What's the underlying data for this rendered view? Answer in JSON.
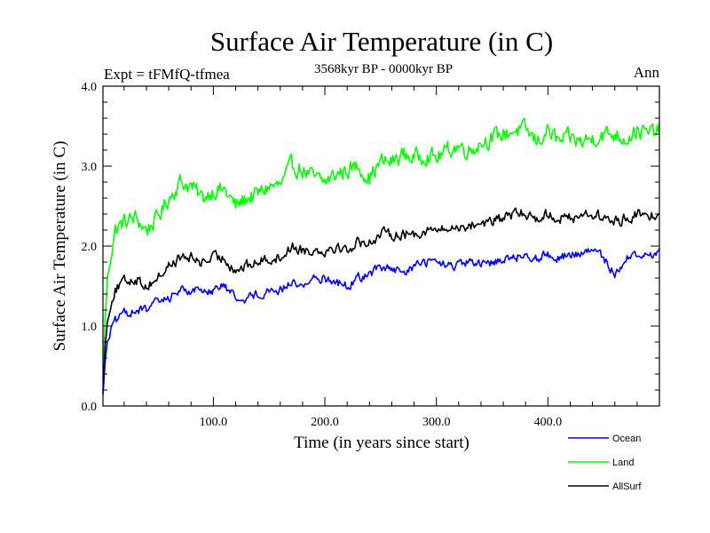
{
  "chart_data": {
    "type": "line",
    "title": "Surface Air Temperature (in C)",
    "subtitle_left": "Expt = tFMfQ-tfmea",
    "subtitle_center": "3568kyr BP - 0000kyr BP",
    "subtitle_right": "Ann",
    "xlabel": "Time (in years since start)",
    "ylabel": "Surface Air Temperature (in C)",
    "xlim": [
      1,
      500
    ],
    "ylim": [
      0,
      4
    ],
    "x_ticks": [
      {
        "value": 100,
        "label": "100.0"
      },
      {
        "value": 200,
        "label": "200.0"
      },
      {
        "value": 300,
        "label": "300.0"
      },
      {
        "value": 400,
        "label": "400.0"
      }
    ],
    "y_ticks": [
      {
        "value": 0,
        "label": "0.0"
      },
      {
        "value": 1,
        "label": "1.0"
      },
      {
        "value": 2,
        "label": "2.0"
      },
      {
        "value": 3,
        "label": "3.0"
      },
      {
        "value": 4,
        "label": "4.0"
      }
    ],
    "legend_position": "bottom-right",
    "series": [
      {
        "name": "Ocean",
        "color": "#0000ff",
        "x": [
          1,
          3,
          5,
          8,
          12,
          16,
          20,
          30,
          40,
          50,
          60,
          70,
          80,
          90,
          100,
          110,
          120,
          130,
          140,
          150,
          160,
          170,
          180,
          190,
          200,
          210,
          220,
          230,
          240,
          250,
          260,
          270,
          280,
          290,
          300,
          310,
          320,
          330,
          340,
          350,
          360,
          370,
          380,
          390,
          400,
          410,
          420,
          430,
          440,
          450,
          460,
          470,
          480,
          490,
          500
        ],
        "values": [
          0.15,
          0.55,
          0.8,
          0.95,
          1.05,
          1.1,
          1.15,
          1.2,
          1.2,
          1.3,
          1.35,
          1.45,
          1.45,
          1.45,
          1.45,
          1.5,
          1.35,
          1.35,
          1.4,
          1.45,
          1.45,
          1.55,
          1.5,
          1.6,
          1.6,
          1.55,
          1.5,
          1.6,
          1.65,
          1.75,
          1.7,
          1.65,
          1.75,
          1.8,
          1.8,
          1.75,
          1.75,
          1.8,
          1.75,
          1.8,
          1.85,
          1.85,
          1.9,
          1.85,
          1.9,
          1.85,
          1.9,
          1.9,
          1.95,
          1.85,
          1.65,
          1.85,
          1.9,
          1.85,
          1.95
        ]
      },
      {
        "name": "Land",
        "color": "#00ff00",
        "x": [
          1,
          3,
          5,
          8,
          12,
          16,
          20,
          30,
          40,
          50,
          60,
          70,
          80,
          90,
          100,
          110,
          120,
          130,
          140,
          150,
          160,
          170,
          180,
          190,
          200,
          210,
          220,
          230,
          240,
          250,
          260,
          270,
          280,
          290,
          300,
          310,
          320,
          330,
          340,
          350,
          360,
          370,
          380,
          390,
          400,
          410,
          420,
          430,
          440,
          450,
          460,
          470,
          480,
          490,
          500
        ],
        "values": [
          0.3,
          1.1,
          1.6,
          1.9,
          2.2,
          2.25,
          2.3,
          2.35,
          2.2,
          2.35,
          2.6,
          2.8,
          2.75,
          2.6,
          2.7,
          2.7,
          2.5,
          2.6,
          2.65,
          2.75,
          2.75,
          3.0,
          2.95,
          2.85,
          2.8,
          2.9,
          2.95,
          3.0,
          2.85,
          3.05,
          3.05,
          3.15,
          3.1,
          3.15,
          3.1,
          3.2,
          3.25,
          3.2,
          3.3,
          3.35,
          3.4,
          3.45,
          3.45,
          3.3,
          3.45,
          3.3,
          3.35,
          3.3,
          3.35,
          3.4,
          3.4,
          3.35,
          3.45,
          3.4,
          3.45
        ]
      },
      {
        "name": "AllSurf",
        "color": "#000000",
        "x": [
          1,
          3,
          5,
          8,
          12,
          16,
          20,
          30,
          40,
          50,
          60,
          70,
          80,
          90,
          100,
          110,
          120,
          130,
          140,
          150,
          160,
          170,
          180,
          190,
          200,
          210,
          220,
          230,
          240,
          250,
          260,
          270,
          280,
          290,
          300,
          310,
          320,
          330,
          340,
          350,
          360,
          370,
          380,
          390,
          400,
          410,
          420,
          430,
          440,
          450,
          460,
          470,
          480,
          490,
          500
        ],
        "values": [
          0.2,
          0.75,
          1.05,
          1.3,
          1.45,
          1.5,
          1.55,
          1.6,
          1.5,
          1.6,
          1.75,
          1.85,
          1.85,
          1.8,
          1.85,
          1.85,
          1.7,
          1.75,
          1.8,
          1.85,
          1.85,
          2.0,
          1.95,
          1.95,
          1.95,
          2.0,
          1.95,
          2.05,
          2.05,
          2.15,
          2.15,
          2.15,
          2.15,
          2.2,
          2.2,
          2.2,
          2.25,
          2.25,
          2.3,
          2.3,
          2.35,
          2.4,
          2.4,
          2.35,
          2.4,
          2.35,
          2.35,
          2.4,
          2.4,
          2.35,
          2.3,
          2.35,
          2.4,
          2.35,
          2.45
        ]
      }
    ]
  }
}
